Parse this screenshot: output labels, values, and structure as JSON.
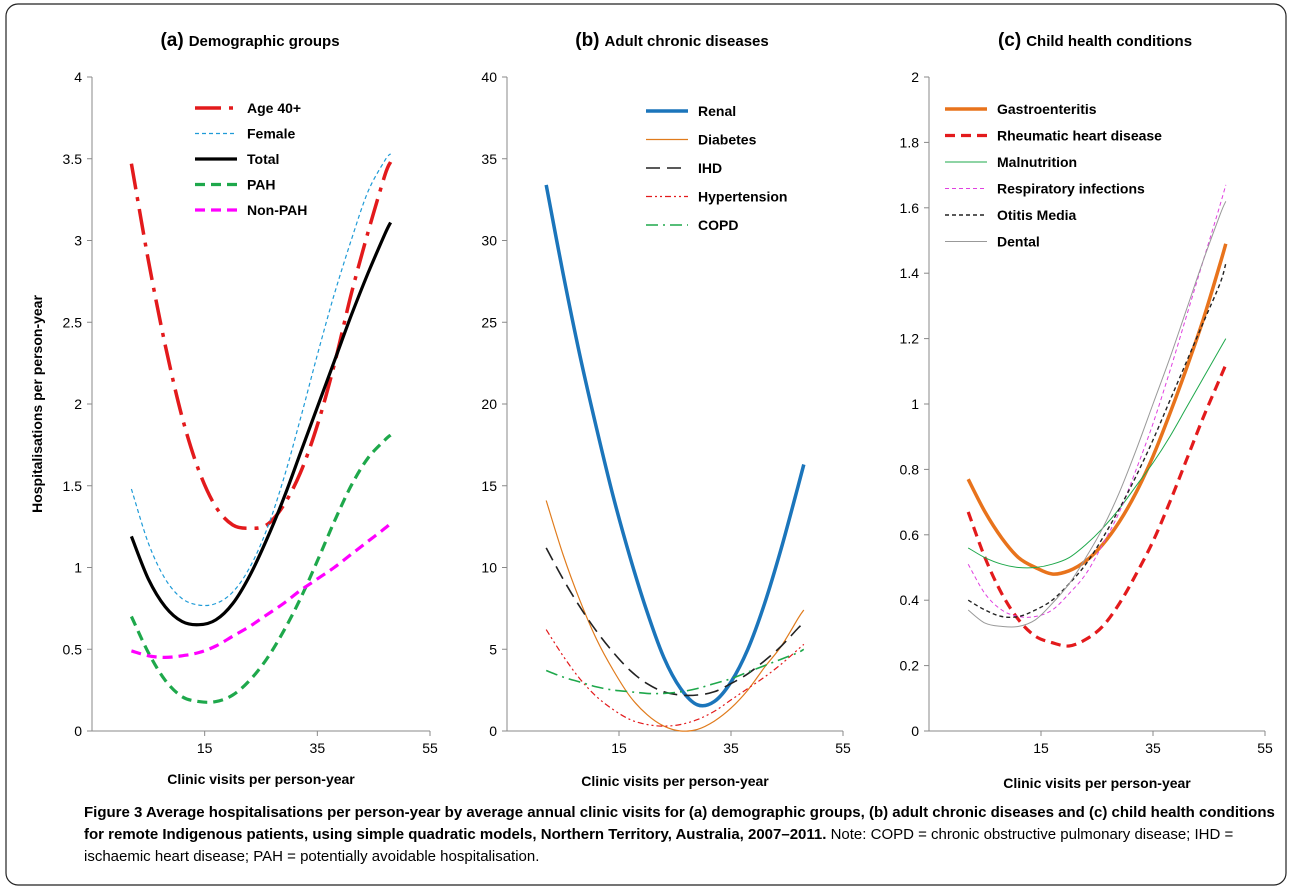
{
  "figure": {
    "caption_title": "Figure 3 Average hospitalisations per person-year by average annual clinic visits for (a) demographic groups, (b) adult chronic diseases and (c) child health conditions for remote Indigenous patients, using simple quadratic models, Northern Territory, Australia, 2007–2011.",
    "caption_note": "Note: COPD = chronic obstructive pulmonary disease; IHD = ischaemic heart disease; PAH = potentially avoidable hospitalisation."
  },
  "chart_data": [
    {
      "type": "line",
      "title_letter": "(a)",
      "title": "Demographic groups",
      "xlabel": "Clinic visits per person-year",
      "ylabel": "Hospitalisations per person-year",
      "xlim": [
        -5,
        55
      ],
      "ylim": [
        0,
        4
      ],
      "xticks": [
        "15",
        "35",
        "55"
      ],
      "xtick_values": [
        15,
        35,
        55
      ],
      "yticks": [
        "0",
        "0.5",
        "1",
        "1.5",
        "2",
        "2.5",
        "3",
        "3.5",
        "4"
      ],
      "ytick_values": [
        0,
        0.5,
        1,
        1.5,
        2,
        2.5,
        3,
        3.5,
        4
      ],
      "legend": "top-center",
      "x": [
        2,
        5,
        8,
        11,
        14,
        17,
        20,
        23,
        26,
        29,
        32,
        35,
        38,
        41,
        44,
        47,
        48
      ],
      "series": [
        {
          "name": "Age 40+",
          "color": "#e31a1c",
          "style": "dashdot",
          "width": 3.5,
          "values": [
            3.47,
            2.88,
            2.36,
            1.92,
            1.59,
            1.37,
            1.26,
            1.24,
            1.26,
            1.38,
            1.58,
            1.87,
            2.24,
            2.67,
            3.05,
            3.4,
            3.48
          ]
        },
        {
          "name": "Female",
          "color": "#1f9bd7",
          "style": "dash",
          "width": 1.2,
          "values": [
            1.48,
            1.15,
            0.93,
            0.81,
            0.77,
            0.78,
            0.85,
            1.0,
            1.23,
            1.54,
            1.91,
            2.3,
            2.67,
            3.0,
            3.3,
            3.49,
            3.53
          ]
        },
        {
          "name": "Total",
          "color": "#000000",
          "style": "solid",
          "width": 3.2,
          "values": [
            1.19,
            0.93,
            0.76,
            0.67,
            0.65,
            0.68,
            0.78,
            0.95,
            1.17,
            1.42,
            1.7,
            1.98,
            2.26,
            2.54,
            2.8,
            3.04,
            3.11
          ]
        },
        {
          "name": "PAH",
          "color": "#1ea84b",
          "style": "dash",
          "width": 3.2,
          "values": [
            0.7,
            0.48,
            0.31,
            0.21,
            0.18,
            0.18,
            0.22,
            0.31,
            0.44,
            0.61,
            0.81,
            1.04,
            1.28,
            1.5,
            1.67,
            1.78,
            1.81
          ]
        },
        {
          "name": "Non-PAH",
          "color": "#ff00ff",
          "style": "dash",
          "width": 3.2,
          "values": [
            0.49,
            0.46,
            0.45,
            0.46,
            0.48,
            0.52,
            0.58,
            0.64,
            0.71,
            0.78,
            0.86,
            0.93,
            1.0,
            1.08,
            1.16,
            1.24,
            1.27
          ]
        }
      ]
    },
    {
      "type": "line",
      "title_letter": "(b)",
      "title": "Adult chronic diseases",
      "xlabel": "Clinic visits per person-year",
      "ylabel": "",
      "xlim": [
        -5,
        55
      ],
      "ylim": [
        0,
        40
      ],
      "xticks": [
        "15",
        "35",
        "55"
      ],
      "xtick_values": [
        15,
        35,
        55
      ],
      "yticks": [
        "0",
        "5",
        "10",
        "15",
        "20",
        "25",
        "30",
        "35",
        "40"
      ],
      "ytick_values": [
        0,
        5,
        10,
        15,
        20,
        25,
        30,
        35,
        40
      ],
      "legend": "top-right",
      "x": [
        2,
        5,
        8,
        11,
        14,
        17,
        20,
        23,
        26,
        29,
        32,
        35,
        38,
        41,
        44,
        47,
        48
      ],
      "series": [
        {
          "name": "Renal",
          "color": "#1b75bb",
          "style": "solid",
          "width": 3.5,
          "values": [
            33.4,
            28.0,
            23.0,
            18.5,
            14.3,
            10.6,
            7.3,
            4.5,
            2.6,
            1.6,
            1.8,
            3.0,
            5.0,
            7.8,
            11.2,
            15.0,
            16.3
          ]
        },
        {
          "name": "Diabetes",
          "color": "#e07b1c",
          "style": "solid",
          "width": 1.2,
          "values": [
            14.1,
            10.8,
            8.0,
            5.6,
            3.7,
            2.1,
            1.0,
            0.3,
            0.0,
            0.1,
            0.6,
            1.4,
            2.5,
            3.9,
            5.2,
            6.9,
            7.4
          ]
        },
        {
          "name": "IHD",
          "color": "#222222",
          "style": "longdash",
          "width": 1.6,
          "values": [
            11.2,
            9.3,
            7.6,
            6.1,
            4.8,
            3.7,
            2.9,
            2.4,
            2.2,
            2.2,
            2.4,
            2.9,
            3.5,
            4.3,
            5.2,
            6.3,
            6.6
          ]
        },
        {
          "name": "Hypertension",
          "color": "#e31a1c",
          "style": "dashdotdot",
          "width": 1.2,
          "values": [
            6.2,
            4.6,
            3.2,
            2.1,
            1.3,
            0.7,
            0.4,
            0.3,
            0.4,
            0.7,
            1.2,
            1.9,
            2.6,
            3.3,
            4.1,
            5.0,
            5.3
          ]
        },
        {
          "name": "COPD",
          "color": "#1ea84b",
          "style": "dashdot",
          "width": 1.6,
          "values": [
            3.7,
            3.3,
            3.0,
            2.7,
            2.5,
            2.4,
            2.3,
            2.3,
            2.4,
            2.6,
            2.9,
            3.2,
            3.6,
            4.0,
            4.4,
            4.8,
            5.0
          ]
        }
      ]
    },
    {
      "type": "line",
      "title_letter": "(c)",
      "title": "Child health conditions",
      "xlabel": "Clinic visits per person-year",
      "ylabel": "",
      "xlim": [
        -5,
        55
      ],
      "ylim": [
        0,
        2
      ],
      "xticks": [
        "15",
        "35",
        "55"
      ],
      "xtick_values": [
        15,
        35,
        55
      ],
      "yticks": [
        "0",
        "0.2",
        "0.4",
        "0.6",
        "0.8",
        "1",
        "1.2",
        "1.4",
        "1.6",
        "1.8",
        "2"
      ],
      "ytick_values": [
        0,
        0.2,
        0.4,
        0.6,
        0.8,
        1,
        1.2,
        1.4,
        1.6,
        1.8,
        2
      ],
      "legend": "top-left",
      "x": [
        2,
        5,
        8,
        11,
        14,
        17,
        20,
        23,
        26,
        29,
        32,
        35,
        38,
        41,
        44,
        47,
        48
      ],
      "series": [
        {
          "name": "Gastroenteritis",
          "color": "#e8731c",
          "style": "solid",
          "width": 3.5,
          "values": [
            0.77,
            0.67,
            0.59,
            0.53,
            0.5,
            0.48,
            0.49,
            0.52,
            0.57,
            0.64,
            0.73,
            0.84,
            0.97,
            1.11,
            1.26,
            1.43,
            1.49
          ]
        },
        {
          "name": "Rheumatic heart disease",
          "color": "#e31a1c",
          "style": "dash",
          "width": 3.2,
          "values": [
            0.67,
            0.53,
            0.42,
            0.34,
            0.29,
            0.27,
            0.26,
            0.28,
            0.32,
            0.39,
            0.48,
            0.58,
            0.7,
            0.83,
            0.96,
            1.08,
            1.12
          ]
        },
        {
          "name": "Malnutrition",
          "color": "#1ea84b",
          "style": "solid",
          "width": 1.0,
          "values": [
            0.56,
            0.53,
            0.51,
            0.5,
            0.5,
            0.51,
            0.53,
            0.57,
            0.62,
            0.68,
            0.75,
            0.82,
            0.9,
            0.99,
            1.08,
            1.17,
            1.2
          ]
        },
        {
          "name": "Respiratory infections",
          "color": "#e040e0",
          "style": "dash",
          "width": 1.0,
          "values": [
            0.51,
            0.42,
            0.37,
            0.35,
            0.35,
            0.37,
            0.42,
            0.48,
            0.57,
            0.67,
            0.8,
            0.94,
            1.1,
            1.27,
            1.44,
            1.61,
            1.67
          ]
        },
        {
          "name": "Otitis Media",
          "color": "#222222",
          "style": "dash",
          "width": 1.4,
          "values": [
            0.4,
            0.37,
            0.35,
            0.35,
            0.37,
            0.4,
            0.45,
            0.51,
            0.59,
            0.68,
            0.78,
            0.89,
            1.01,
            1.13,
            1.25,
            1.37,
            1.43
          ]
        },
        {
          "name": "Dental",
          "color": "#999999",
          "style": "solid",
          "width": 1.0,
          "values": [
            0.37,
            0.33,
            0.32,
            0.32,
            0.34,
            0.39,
            0.45,
            0.53,
            0.62,
            0.73,
            0.86,
            1.0,
            1.14,
            1.29,
            1.44,
            1.58,
            1.62
          ]
        }
      ]
    }
  ]
}
